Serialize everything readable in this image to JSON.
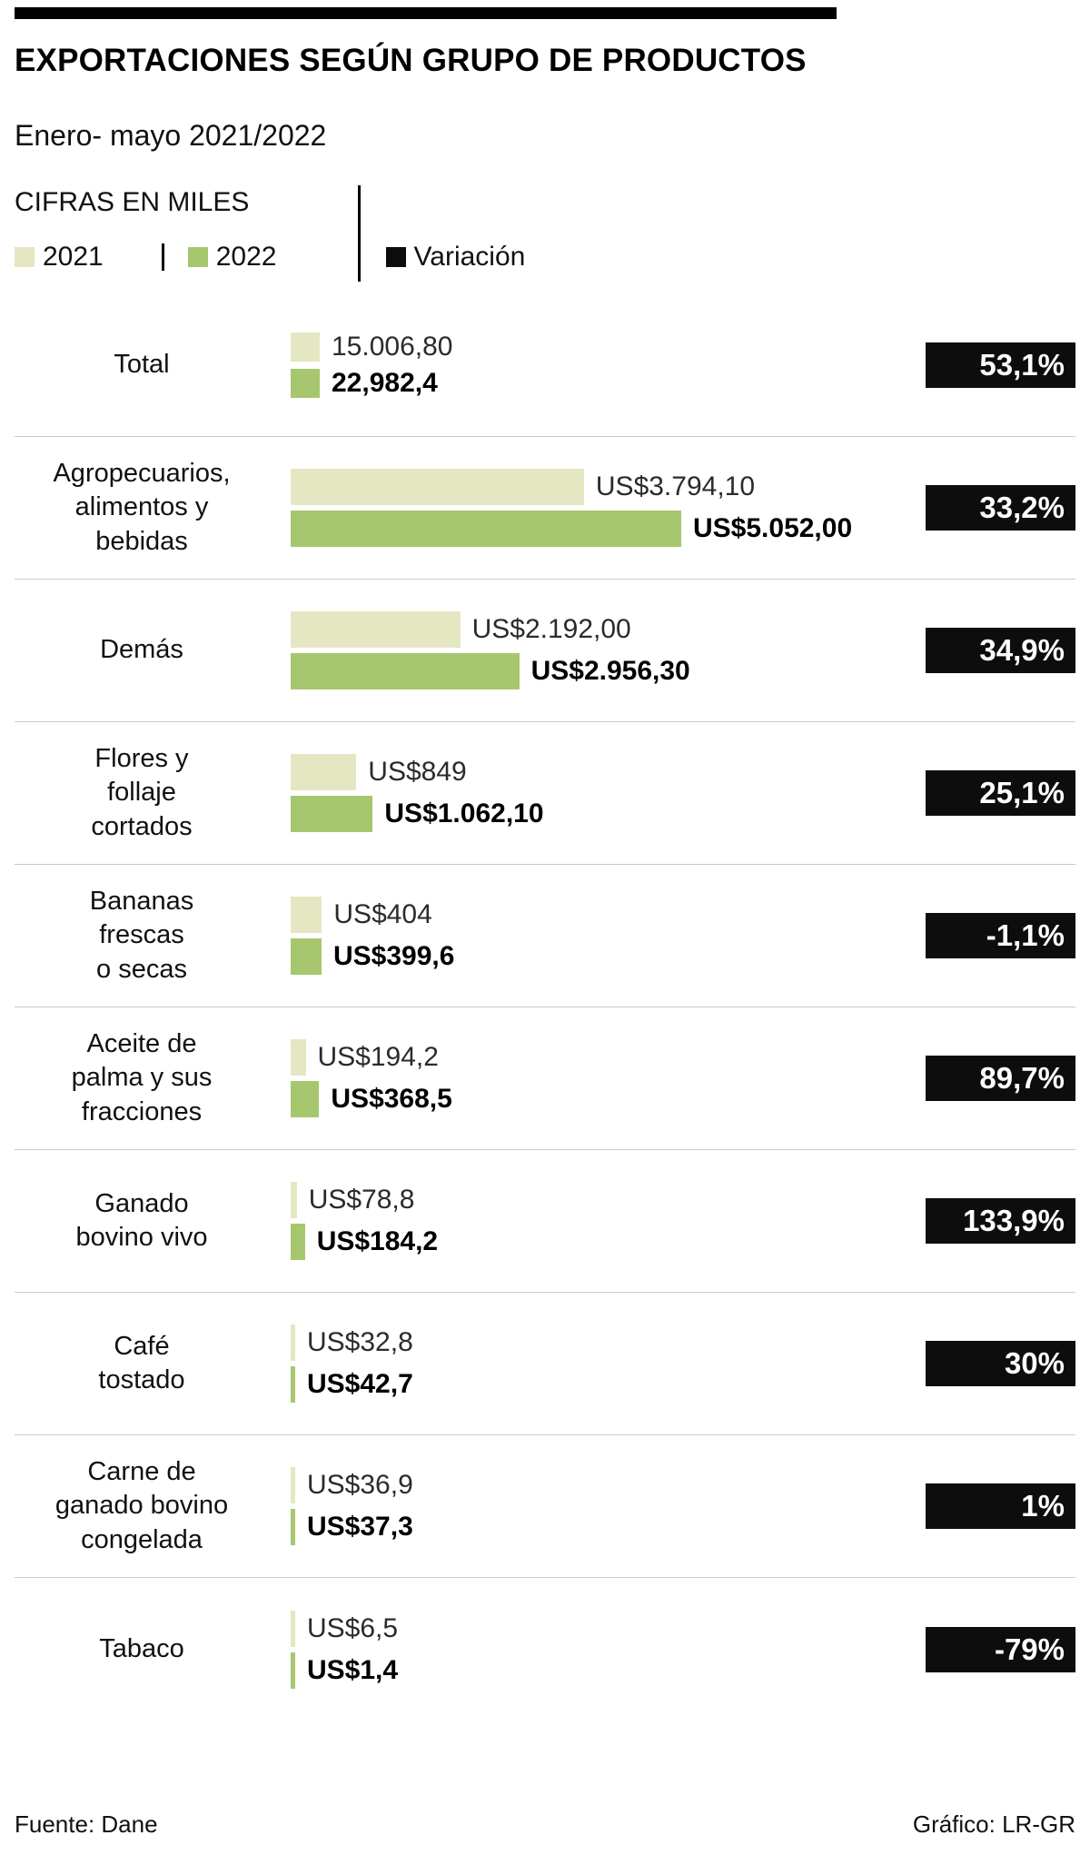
{
  "title": "EXPORTACIONES SEGÚN GRUPO DE PRODUCTOS",
  "subtitle": "Enero- mayo 2021/2022",
  "units_label": "CIFRAS EN MILES",
  "legend": {
    "y2021": "2021",
    "y2022": "2022",
    "variation": "Variación"
  },
  "colors": {
    "series_2021": "#e4e7c2",
    "series_2022": "#a7c76f",
    "variation": "#0d0d0d"
  },
  "footer": {
    "source": "Fuente: Dane",
    "credit": "Gráfico: LR-GR"
  },
  "chart_data": {
    "type": "bar",
    "orientation": "horizontal",
    "series": [
      "2021",
      "2022"
    ],
    "units": "US$ miles",
    "max_value": 5052.0,
    "rows": [
      {
        "category": "Total",
        "is_total": true,
        "value_2021": 15006.8,
        "value_2022": 22982.4,
        "label_2021": "15.006,80",
        "label_2022": "22,982,4",
        "variation": "53,1%"
      },
      {
        "category": "Agropecuarios,\nalimentos y\nbebidas",
        "value_2021": 3794.1,
        "value_2022": 5052.0,
        "label_2021": "US$3.794,10",
        "label_2022": "US$5.052,00",
        "variation": "33,2%"
      },
      {
        "category": "Demás",
        "value_2021": 2192.0,
        "value_2022": 2956.3,
        "label_2021": "US$2.192,00",
        "label_2022": "US$2.956,30",
        "variation": "34,9%"
      },
      {
        "category": "Flores y\nfollaje\ncortados",
        "value_2021": 849.0,
        "value_2022": 1062.1,
        "label_2021": "US$849",
        "label_2022": "US$1.062,10",
        "variation": "25,1%"
      },
      {
        "category": "Bananas\nfrescas\no secas",
        "value_2021": 404.0,
        "value_2022": 399.6,
        "label_2021": "US$404",
        "label_2022": "US$399,6",
        "variation": "-1,1%"
      },
      {
        "category": "Aceite de\npalma y sus\nfracciones",
        "value_2021": 194.2,
        "value_2022": 368.5,
        "label_2021": "US$194,2",
        "label_2022": "US$368,5",
        "variation": "89,7%"
      },
      {
        "category": "Ganado\nbovino vivo",
        "value_2021": 78.8,
        "value_2022": 184.2,
        "label_2021": "US$78,8",
        "label_2022": "US$184,2",
        "variation": "133,9%"
      },
      {
        "category": "Café\ntostado",
        "value_2021": 32.8,
        "value_2022": 42.7,
        "label_2021": "US$32,8",
        "label_2022": "US$42,7",
        "variation": "30%"
      },
      {
        "category": "Carne de\nganado bovino\ncongelada",
        "value_2021": 36.9,
        "value_2022": 37.3,
        "label_2021": "US$36,9",
        "label_2022": "US$37,3",
        "variation": "1%"
      },
      {
        "category": "Tabaco",
        "value_2021": 6.5,
        "value_2022": 1.4,
        "label_2021": "US$6,5",
        "label_2022": "US$1,4",
        "variation": "-79%"
      }
    ]
  }
}
